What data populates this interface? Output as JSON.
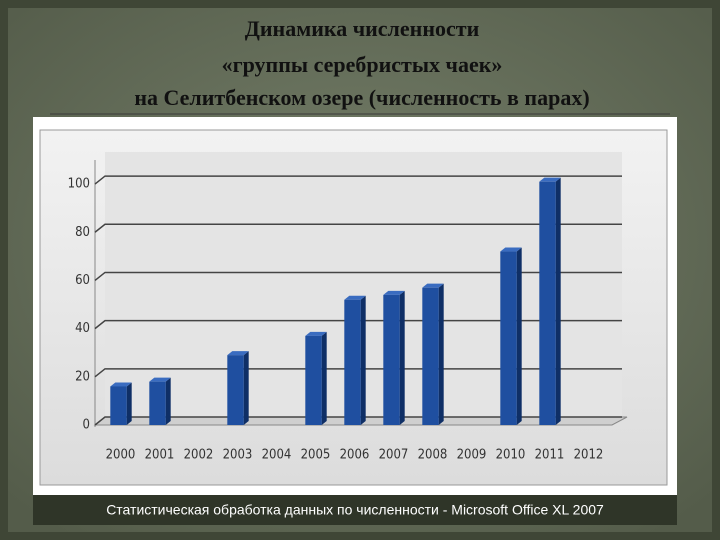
{
  "chart_data": {
    "type": "bar",
    "title": [
      "Динамика численности",
      "«группы серебристых чаек»",
      "на Селитбенском озере (численность в парах)"
    ],
    "caption": "Статистическая обработка данных по численности - Microsoft Office XL 2007",
    "categories": [
      "2000",
      "2001",
      "2002",
      "2003",
      "2004",
      "2005",
      "2006",
      "2007",
      "2008",
      "2009",
      "2010",
      "2011",
      "2012"
    ],
    "values": [
      16,
      18,
      null,
      29,
      null,
      37,
      52,
      54,
      57,
      null,
      72,
      101,
      null
    ],
    "color": "#1f4fa0",
    "ylim": [
      0,
      110
    ],
    "yticks": [
      0,
      20,
      40,
      60,
      80,
      100
    ],
    "grid": true
  }
}
